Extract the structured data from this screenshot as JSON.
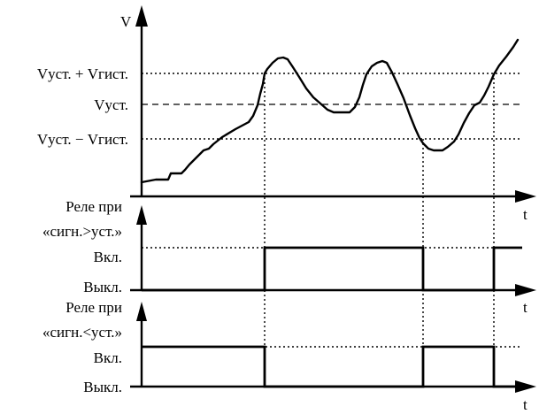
{
  "top_chart": {
    "y_axis_label": "V",
    "x_axis_label": "t",
    "levels": {
      "upper": "Vуст. + Vгист.",
      "setpoint": "Vуст.",
      "lower": "Vуст. − Vгист."
    }
  },
  "relay_greater": {
    "title_line1": "Реле при",
    "title_line2": "«сигн.>уст.»",
    "on_label": "Вкл.",
    "off_label": "Выкл.",
    "x_axis_label": "t"
  },
  "relay_less": {
    "title_line1": "Реле при",
    "title_line2": "«сигн.<уст.»",
    "on_label": "Вкл.",
    "off_label": "Выкл.",
    "x_axis_label": "t"
  }
}
